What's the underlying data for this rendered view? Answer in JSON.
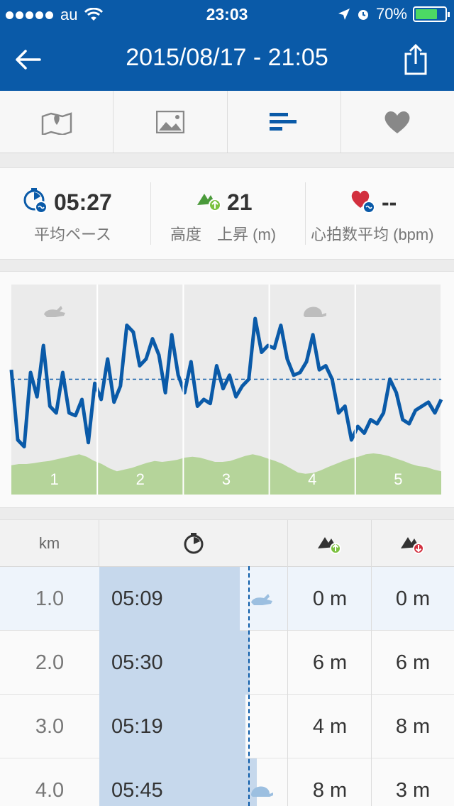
{
  "status_bar": {
    "carrier": "au",
    "time": "23:03",
    "battery": "70%"
  },
  "header": {
    "title": "2015/08/17 - 21:05"
  },
  "tabs": [
    {
      "icon": "map-icon"
    },
    {
      "icon": "photo-icon"
    },
    {
      "icon": "splits-icon",
      "active": true
    },
    {
      "icon": "heart-icon"
    }
  ],
  "summary": {
    "pace": {
      "value": "05:27",
      "label": "平均ペース"
    },
    "elevation": {
      "value": "21",
      "label": "高度　上昇 (m)"
    },
    "heart_rate": {
      "value": "--",
      "label": "心拍数平均 (bpm)"
    }
  },
  "chart_data": {
    "type": "line",
    "x_categories": [
      "1",
      "2",
      "3",
      "4",
      "5"
    ],
    "pace_series": [
      0.62,
      0.1,
      0.05,
      0.6,
      0.42,
      0.8,
      0.35,
      0.3,
      0.6,
      0.3,
      0.28,
      0.4,
      0.08,
      0.52,
      0.4,
      0.7,
      0.38,
      0.5,
      0.95,
      0.9,
      0.65,
      0.7,
      0.85,
      0.73,
      0.45,
      0.88,
      0.58,
      0.45,
      0.68,
      0.35,
      0.4,
      0.37,
      0.65,
      0.48,
      0.58,
      0.42,
      0.5,
      0.55,
      1.0,
      0.75,
      0.8,
      0.78,
      0.95,
      0.7,
      0.58,
      0.6,
      0.68,
      0.88,
      0.62,
      0.65,
      0.55,
      0.3,
      0.35,
      0.1,
      0.2,
      0.15,
      0.25,
      0.22,
      0.3,
      0.55,
      0.45,
      0.25,
      0.22,
      0.32,
      0.35,
      0.38,
      0.3,
      0.4
    ],
    "pace_average": 0.55,
    "elevation_series": [
      0.52,
      0.55,
      0.55,
      0.57,
      0.6,
      0.62,
      0.66,
      0.7,
      0.74,
      0.78,
      0.72,
      0.62,
      0.55,
      0.45,
      0.38,
      0.42,
      0.46,
      0.52,
      0.58,
      0.62,
      0.6,
      0.62,
      0.65,
      0.7,
      0.72,
      0.7,
      0.65,
      0.6,
      0.6,
      0.62,
      0.68,
      0.74,
      0.78,
      0.74,
      0.68,
      0.62,
      0.55,
      0.45,
      0.35,
      0.32,
      0.34,
      0.4,
      0.48,
      0.55,
      0.62,
      0.68,
      0.72,
      0.78,
      0.8,
      0.78,
      0.74,
      0.68,
      0.62,
      0.55,
      0.5,
      0.48,
      0.42,
      0.38
    ]
  },
  "table": {
    "headers": {
      "km": "km",
      "pace_icon": "stopwatch-icon",
      "ascent_icon": "ascent-icon",
      "descent_icon": "descent-icon"
    },
    "rows": [
      {
        "km": "1.0",
        "pace": "05:09",
        "ascent": "0 m",
        "descent": "0 m",
        "marker": "rabbit-icon",
        "selected": true
      },
      {
        "km": "2.0",
        "pace": "05:30",
        "ascent": "6 m",
        "descent": "6 m",
        "marker": ""
      },
      {
        "km": "3.0",
        "pace": "05:19",
        "ascent": "4 m",
        "descent": "8 m",
        "marker": ""
      },
      {
        "km": "4.0",
        "pace": "05:45",
        "ascent": "8 m",
        "descent": "3 m",
        "marker": "turtle-icon"
      }
    ]
  },
  "colors": {
    "brand": "#0a5aa8",
    "elevation": "#b5d49a",
    "pace_bar": "#c6d8ec"
  }
}
